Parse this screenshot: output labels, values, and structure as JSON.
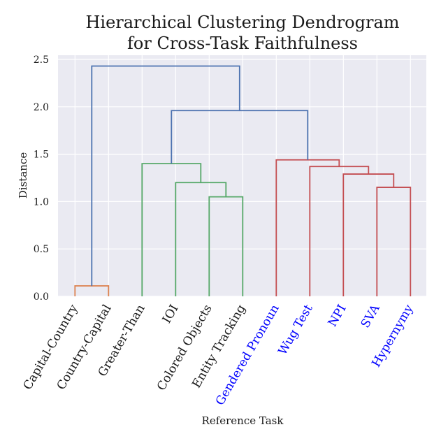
{
  "chart_data": {
    "type": "dendrogram",
    "title_lines": [
      "Hierarchical Clustering Dendrogram",
      "for Cross-Task Faithfulness"
    ],
    "xlabel": "Reference Task",
    "ylabel": "Distance",
    "ylim": [
      0,
      2.5
    ],
    "yticks": [
      "0.0",
      "0.5",
      "1.0",
      "1.5",
      "2.0",
      "2.5"
    ],
    "grid": true,
    "leaves": [
      {
        "label": "Capital-Country",
        "color": "#1a1a1a"
      },
      {
        "label": "Country-Capital",
        "color": "#1a1a1a"
      },
      {
        "label": "Greater-Than",
        "color": "#1a1a1a"
      },
      {
        "label": "IOI",
        "color": "#1a1a1a"
      },
      {
        "label": "Colored Objects",
        "color": "#1a1a1a"
      },
      {
        "label": "Entity Tracking",
        "color": "#1a1a1a"
      },
      {
        "label": "Gendered Pronoun",
        "color": "#0000ff"
      },
      {
        "label": "Wug Test",
        "color": "#0000ff"
      },
      {
        "label": "NPI",
        "color": "#0000ff"
      },
      {
        "label": "SVA",
        "color": "#0000ff"
      },
      {
        "label": "Hypernymy",
        "color": "#0000ff"
      }
    ],
    "merges": [
      {
        "id": "m1",
        "left": 0,
        "right": 1,
        "height": 0.11,
        "color": "#dd8452"
      },
      {
        "id": "m2",
        "left": 4,
        "right": 5,
        "height": 1.05,
        "color": "#55a868"
      },
      {
        "id": "m3",
        "left": 3,
        "right": "m2",
        "height": 1.2,
        "color": "#55a868"
      },
      {
        "id": "m4",
        "left": 2,
        "right": "m3",
        "height": 1.4,
        "color": "#55a868"
      },
      {
        "id": "m5",
        "left": 9,
        "right": 10,
        "height": 1.15,
        "color": "#c44e52"
      },
      {
        "id": "m6",
        "left": 8,
        "right": "m5",
        "height": 1.29,
        "color": "#c44e52"
      },
      {
        "id": "m7",
        "left": 7,
        "right": "m6",
        "height": 1.37,
        "color": "#c44e52"
      },
      {
        "id": "m8",
        "left": 6,
        "right": "m7",
        "height": 1.44,
        "color": "#c44e52"
      },
      {
        "id": "m9",
        "left": "m4",
        "right": "m8",
        "height": 1.96,
        "color": "#4c72b0"
      },
      {
        "id": "m10",
        "left": "m1",
        "right": "m9",
        "height": 2.43,
        "color": "#4c72b0"
      }
    ]
  }
}
